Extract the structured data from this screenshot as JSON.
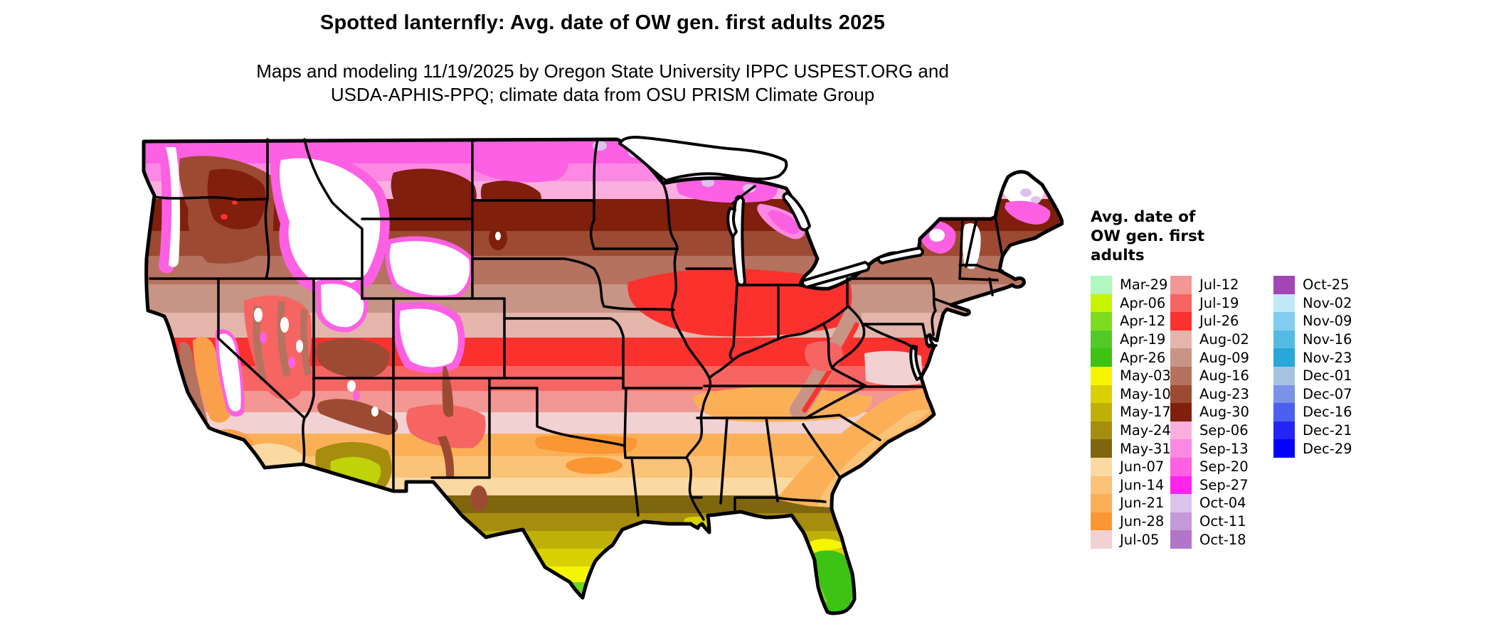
{
  "title": "Spotted lanternfly: Avg. date of OW gen. first adults 2025",
  "subtitle": {
    "line1": "Maps and modeling 11/19/2025 by Oregon State University IPPC USPEST.ORG and",
    "line2": "USDA-APHIS-PPQ; climate data from OSU PRISM Climate Group"
  },
  "legend": {
    "title_line1": "Avg. date of",
    "title_line2": "OW gen. first",
    "title_line3": "adults",
    "columns": [
      {
        "entries": [
          {
            "label": "Mar-29",
            "color": "#b0f7c0"
          },
          {
            "label": "Apr-06",
            "color": "#c8f400"
          },
          {
            "label": "Apr-12",
            "color": "#7edc1e"
          },
          {
            "label": "Apr-19",
            "color": "#52c926"
          },
          {
            "label": "Apr-26",
            "color": "#3cc313"
          },
          {
            "label": "May-03",
            "color": "#f5f500"
          },
          {
            "label": "May-10",
            "color": "#d8d000"
          },
          {
            "label": "May-17",
            "color": "#bfb008"
          },
          {
            "label": "May-24",
            "color": "#a68d0d"
          },
          {
            "label": "May-31",
            "color": "#7f660e"
          },
          {
            "label": "Jun-07",
            "color": "#fbd9a3"
          },
          {
            "label": "Jun-14",
            "color": "#fbc377"
          },
          {
            "label": "Jun-21",
            "color": "#fbb058"
          },
          {
            "label": "Jun-28",
            "color": "#fa9733"
          },
          {
            "label": "Jul-05",
            "color": "#f2d1d2"
          }
        ]
      },
      {
        "entries": [
          {
            "label": "Jul-12",
            "color": "#f29793"
          },
          {
            "label": "Jul-19",
            "color": "#f66562"
          },
          {
            "label": "Jul-26",
            "color": "#fb312e"
          },
          {
            "label": "Aug-02",
            "color": "#e3b5ab"
          },
          {
            "label": "Aug-09",
            "color": "#c79485"
          },
          {
            "label": "Aug-16",
            "color": "#b4725f"
          },
          {
            "label": "Aug-23",
            "color": "#9d4a33"
          },
          {
            "label": "Aug-30",
            "color": "#7f1f0c"
          },
          {
            "label": "Sep-06",
            "color": "#fbafdf"
          },
          {
            "label": "Sep-13",
            "color": "#fb89e3"
          },
          {
            "label": "Sep-20",
            "color": "#fd60e3"
          },
          {
            "label": "Sep-27",
            "color": "#fe24ec"
          },
          {
            "label": "Oct-04",
            "color": "#dcc3eb"
          },
          {
            "label": "Oct-11",
            "color": "#c399d7"
          },
          {
            "label": "Oct-18",
            "color": "#b176ca"
          }
        ]
      },
      {
        "entries": [
          {
            "label": "Oct-25",
            "color": "#a246b6"
          },
          {
            "label": "Nov-02",
            "color": "#c2e9fa"
          },
          {
            "label": "Nov-09",
            "color": "#83ccef"
          },
          {
            "label": "Nov-16",
            "color": "#54bbe5"
          },
          {
            "label": "Nov-23",
            "color": "#2aa6d8"
          },
          {
            "label": "Dec-01",
            "color": "#a8c3e2"
          },
          {
            "label": "Dec-07",
            "color": "#7a92e7"
          },
          {
            "label": "Dec-16",
            "color": "#4b60ee"
          },
          {
            "label": "Dec-21",
            "color": "#2326f3"
          },
          {
            "label": "Dec-29",
            "color": "#0402fa"
          }
        ]
      }
    ]
  }
}
